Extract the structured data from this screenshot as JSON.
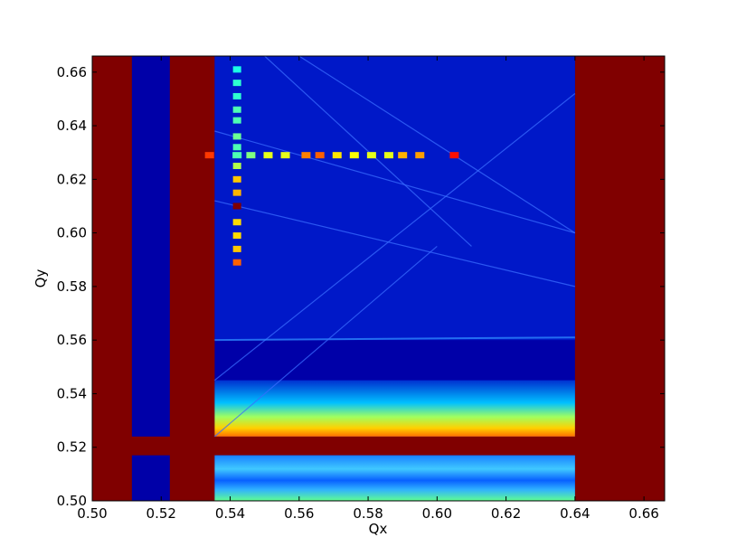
{
  "chart_data": {
    "type": "heatmap",
    "title": "",
    "xlabel": "Qx",
    "ylabel": "Qy",
    "xlim": [
      0.5,
      0.666
    ],
    "ylim": [
      0.5,
      0.666
    ],
    "x_ticks": [
      0.5,
      0.52,
      0.54,
      0.56,
      0.58,
      0.6,
      0.62,
      0.64,
      0.66
    ],
    "y_ticks": [
      0.5,
      0.52,
      0.54,
      0.56,
      0.58,
      0.6,
      0.62,
      0.64,
      0.66
    ],
    "x_tick_labels": [
      "0.50",
      "0.52",
      "0.54",
      "0.56",
      "0.58",
      "0.60",
      "0.62",
      "0.64",
      "0.66"
    ],
    "y_tick_labels": [
      "0.50",
      "0.52",
      "0.54",
      "0.56",
      "0.58",
      "0.60",
      "0.62",
      "0.64",
      "0.66"
    ],
    "grid": false,
    "colormap": "jet",
    "background_value_color": "#00008b",
    "regions": [
      {
        "name": "left-edge-band",
        "x": [
          0.5,
          0.5115
        ],
        "y": [
          0.5,
          0.666
        ],
        "level": 1.0
      },
      {
        "name": "left-stripe",
        "x": [
          0.5225,
          0.5355
        ],
        "y": [
          0.5,
          0.666
        ],
        "level": 1.0
      },
      {
        "name": "right-edge-band",
        "x": [
          0.64,
          0.666
        ],
        "y": [
          0.5,
          0.666
        ],
        "level": 1.0
      },
      {
        "name": "bottom-band",
        "x": [
          0.5,
          0.666
        ],
        "y": [
          0.517,
          0.524
        ],
        "level": 1.0
      },
      {
        "name": "bottom-gradient",
        "x": [
          0.5355,
          0.64
        ],
        "y": [
          0.524,
          0.545
        ],
        "level": 0.55
      },
      {
        "name": "lower-strip",
        "x": [
          0.5355,
          0.64
        ],
        "y": [
          0.5,
          0.517
        ],
        "level": 0.35
      },
      {
        "name": "upper-block",
        "x": [
          0.5355,
          0.64
        ],
        "y": [
          0.56,
          0.666
        ],
        "level": 0.12
      }
    ],
    "series": [
      {
        "orientation": "horizontal",
        "y": 0.629,
        "points": [
          {
            "x": 0.534,
            "level": 0.82
          },
          {
            "x": 0.542,
            "level": 0.45
          },
          {
            "x": 0.546,
            "level": 0.5
          },
          {
            "x": 0.551,
            "level": 0.6
          },
          {
            "x": 0.556,
            "level": 0.6
          },
          {
            "x": 0.562,
            "level": 0.75
          },
          {
            "x": 0.566,
            "level": 0.78
          },
          {
            "x": 0.571,
            "level": 0.65
          },
          {
            "x": 0.576,
            "level": 0.62
          },
          {
            "x": 0.581,
            "level": 0.6
          },
          {
            "x": 0.586,
            "level": 0.6
          },
          {
            "x": 0.59,
            "level": 0.7
          },
          {
            "x": 0.595,
            "level": 0.72
          },
          {
            "x": 0.605,
            "level": 0.86
          }
        ]
      },
      {
        "orientation": "vertical",
        "x": 0.542,
        "points": [
          {
            "y": 0.661,
            "level": 0.4
          },
          {
            "y": 0.656,
            "level": 0.42
          },
          {
            "y": 0.651,
            "level": 0.42
          },
          {
            "y": 0.646,
            "level": 0.45
          },
          {
            "y": 0.642,
            "level": 0.45
          },
          {
            "y": 0.636,
            "level": 0.48
          },
          {
            "y": 0.632,
            "level": 0.45
          },
          {
            "y": 0.625,
            "level": 0.55
          },
          {
            "y": 0.62,
            "level": 0.68
          },
          {
            "y": 0.615,
            "level": 0.7
          },
          {
            "y": 0.61,
            "level": 1.0
          },
          {
            "y": 0.604,
            "level": 0.66
          },
          {
            "y": 0.599,
            "level": 0.66
          },
          {
            "y": 0.594,
            "level": 0.68
          },
          {
            "y": 0.589,
            "level": 0.78
          }
        ]
      }
    ]
  }
}
